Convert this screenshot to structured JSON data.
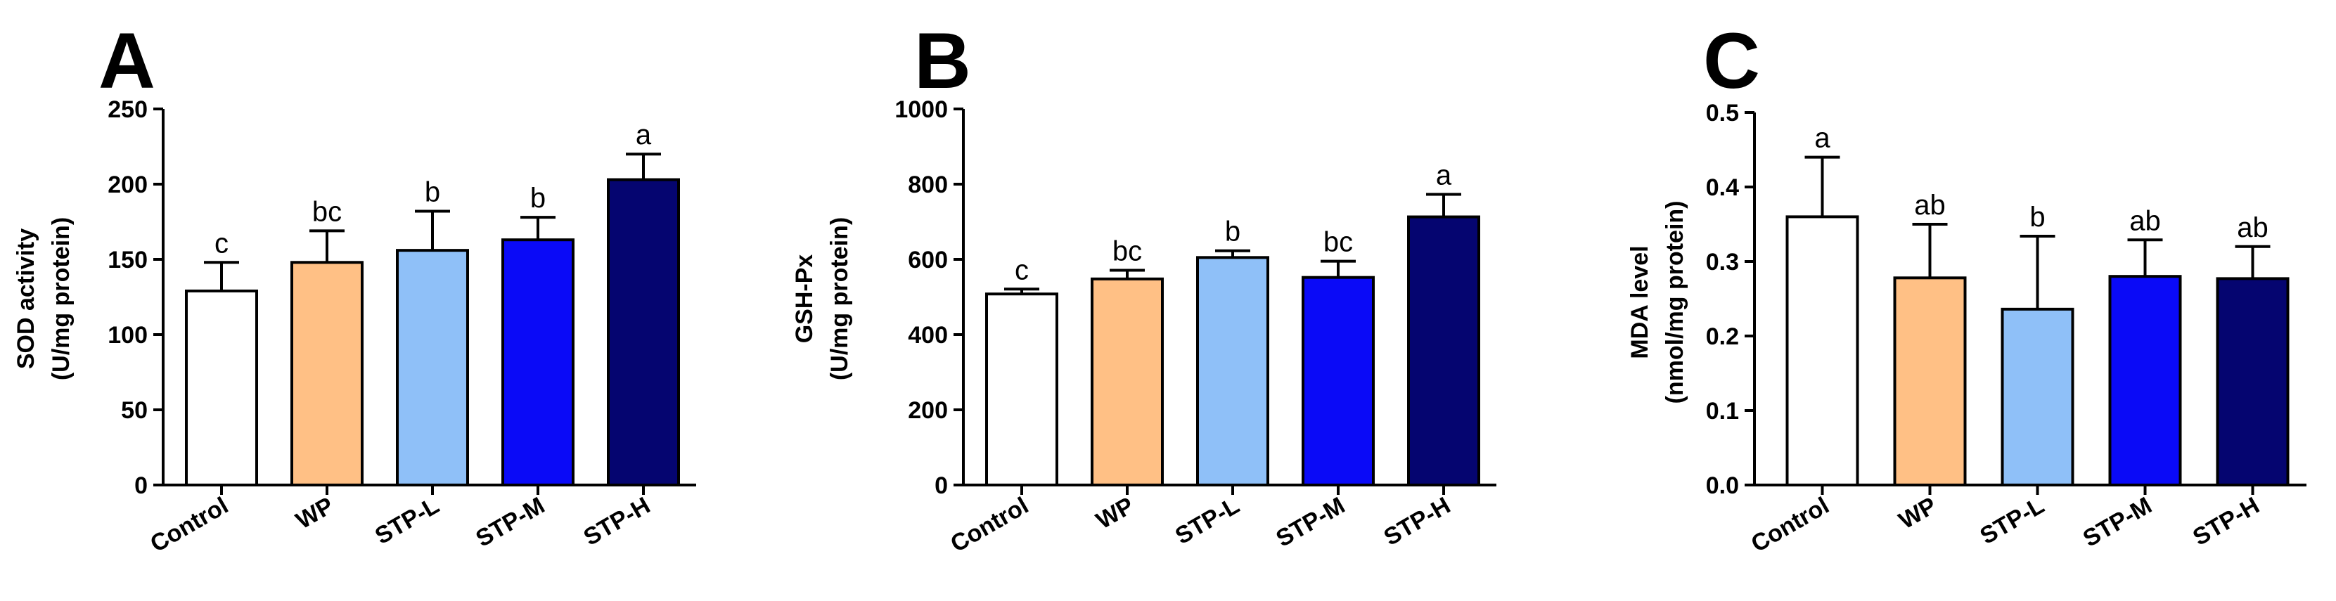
{
  "figure": {
    "bar_colors": [
      "#ffffff",
      "#ffc085",
      "#8fc0f8",
      "#0a0af7",
      "#050570"
    ]
  },
  "chart_data": [
    {
      "type": "bar",
      "panel_label": "A",
      "categories": [
        "Control",
        "WP",
        "STP-L",
        "STP-M",
        "STP-H"
      ],
      "values": [
        129,
        148,
        156,
        163,
        203
      ],
      "errors": [
        19,
        21,
        26,
        15,
        17
      ],
      "significance": [
        "c",
        "bc",
        "b",
        "b",
        "a"
      ],
      "ylabel_line1": "SOD activity",
      "ylabel_line2": "(U/mg protein)",
      "ylim": [
        0,
        250
      ],
      "yticks": [
        0,
        50,
        100,
        150,
        200,
        250
      ],
      "ytick_labels": [
        "0",
        "50",
        "100",
        "150",
        "200",
        "250"
      ]
    },
    {
      "type": "bar",
      "panel_label": "B",
      "categories": [
        "Control",
        "WP",
        "STP-L",
        "STP-M",
        "STP-H"
      ],
      "values": [
        508,
        548,
        605,
        552,
        713
      ],
      "errors": [
        13,
        23,
        18,
        43,
        60
      ],
      "significance": [
        "c",
        "bc",
        "b",
        "bc",
        "a"
      ],
      "ylabel_line1": "GSH-Px",
      "ylabel_line2": "(U/mg protein)",
      "ylim": [
        0,
        1000
      ],
      "yticks": [
        0,
        200,
        400,
        600,
        800,
        1000
      ],
      "ytick_labels": [
        "0",
        "200",
        "400",
        "600",
        "800",
        "1000"
      ]
    },
    {
      "type": "bar",
      "panel_label": "C",
      "categories": [
        "Control",
        "WP",
        "STP-L",
        "STP-M",
        "STP-H"
      ],
      "values": [
        0.36,
        0.278,
        0.236,
        0.28,
        0.277
      ],
      "errors": [
        0.08,
        0.072,
        0.098,
        0.049,
        0.043
      ],
      "significance": [
        "a",
        "ab",
        "b",
        "ab",
        "ab"
      ],
      "ylabel_line1": "MDA level",
      "ylabel_line2": "(nmol/mg protein)",
      "ylim": [
        0,
        0.5
      ],
      "yticks": [
        0,
        0.1,
        0.2,
        0.3,
        0.4,
        0.5
      ],
      "ytick_labels": [
        "0.0",
        "0.1",
        "0.2",
        "0.3",
        "0.4",
        "0.5"
      ]
    }
  ]
}
